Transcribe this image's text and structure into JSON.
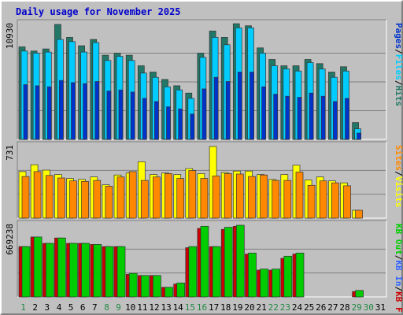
{
  "chart_data": {
    "type": "bar",
    "title": "Daily usage for November 2025",
    "colors": {
      "hits": "#227766",
      "files": "#00ccff",
      "pages": "#0033cc",
      "visits": "#ffff00",
      "sites": "#ff8800",
      "kb_in": "#cc0000",
      "kb_out": "#00cc00",
      "background": "#c0c0c0",
      "grid": "#808080",
      "weekend_label": "#228844",
      "title": "#0000cc"
    },
    "days": [
      "1",
      "2",
      "3",
      "4",
      "5",
      "6",
      "7",
      "8",
      "9",
      "10",
      "11",
      "12",
      "13",
      "14",
      "15",
      "16",
      "17",
      "18",
      "19",
      "20",
      "21",
      "22",
      "23",
      "24",
      "25",
      "26",
      "27",
      "28",
      "29",
      "30",
      "31"
    ],
    "weekend_days": [
      "1",
      "8",
      "9",
      "15",
      "16",
      "22",
      "23",
      "29",
      "30"
    ],
    "panels": [
      {
        "max_label": "10930",
        "ymax": 10930,
        "legend": [
          {
            "text": "Hits",
            "color": "#227766"
          },
          {
            "text": "/",
            "color": "#000000"
          },
          {
            "text": "Files",
            "color": "#00ccff"
          },
          {
            "text": "/",
            "color": "#000000"
          },
          {
            "text": "Pages",
            "color": "#0033cc"
          }
        ],
        "series": [
          {
            "name": "Hits",
            "color": "#227766",
            "values": [
              8800,
              8400,
              8600,
              10930,
              9700,
              8900,
              9500,
              8000,
              8200,
              8000,
              7000,
              6400,
              5700,
              5100,
              4400,
              8200,
              10300,
              9700,
              11000,
              10800,
              8700,
              7600,
              7000,
              7000,
              7600,
              7200,
              6400,
              6900,
              1600,
              null,
              null
            ]
          },
          {
            "name": "Files",
            "color": "#00ccff",
            "values": [
              8400,
              8200,
              8300,
              9500,
              9300,
              8300,
              9200,
              7500,
              7900,
              7500,
              6300,
              5900,
              5000,
              4700,
              3900,
              7800,
              9700,
              9000,
              10600,
              10600,
              8200,
              7000,
              6700,
              6500,
              7300,
              6700,
              5900,
              6500,
              1000,
              null,
              null
            ]
          },
          {
            "name": "Pages",
            "color": "#0033cc",
            "values": [
              5200,
              5100,
              5000,
              5600,
              5400,
              5300,
              5500,
              4600,
              4700,
              4500,
              3900,
              3600,
              3100,
              2900,
              2400,
              4800,
              5900,
              5500,
              6400,
              6400,
              5000,
              4300,
              4100,
              4000,
              4400,
              4100,
              3600,
              3900,
              600,
              null,
              null
            ]
          }
        ]
      },
      {
        "max_label": "731",
        "ymax": 731,
        "legend": [
          {
            "text": "Visits",
            "color": "#ffff00"
          },
          {
            "text": "/",
            "color": "#000000"
          },
          {
            "text": "Sites",
            "color": "#ff8800"
          }
        ],
        "series": [
          {
            "name": "Visits",
            "color": "#ffff00",
            "values": [
              475,
              545,
              490,
              445,
              405,
              395,
              420,
              340,
              440,
              460,
              575,
              445,
              460,
              445,
              505,
              455,
              731,
              465,
              480,
              480,
              445,
              395,
              445,
              540,
              390,
              420,
              380,
              360,
              80,
              null,
              null
            ]
          },
          {
            "name": "Sites",
            "color": "#ff8800",
            "values": [
              425,
              475,
              435,
              410,
              380,
              375,
              385,
              325,
              420,
              475,
              385,
              420,
              455,
              405,
              485,
              405,
              430,
              455,
              450,
              425,
              440,
              385,
              385,
              470,
              335,
              380,
              360,
              330,
              80,
              null,
              null
            ]
          }
        ]
      },
      {
        "max_label": "669238",
        "ymax": 669238,
        "legend": [
          {
            "text": "KB F",
            "color": "#cc0000"
          },
          {
            "text": "/",
            "color": "#000000"
          },
          {
            "text": "KB In",
            "color": "#3366ff"
          },
          {
            "text": "/",
            "color": "#000000"
          },
          {
            "text": "KB Out",
            "color": "#00cc00"
          }
        ],
        "series": [
          {
            "name": "KB F",
            "color": "#cc0000",
            "values": [
              470000,
              560000,
              500000,
              550000,
              500000,
              500000,
              490000,
              470000,
              470000,
              210000,
              200000,
              200000,
              90000,
              120000,
              460000,
              640000,
              470000,
              630000,
              660000,
              400000,
              250000,
              250000,
              360000,
              400000,
              null,
              null,
              null,
              null,
              50000,
              null,
              null
            ]
          },
          {
            "name": "KB Out",
            "color": "#00cc00",
            "values": [
              470000,
              560000,
              500000,
              550000,
              500000,
              500000,
              490000,
              470000,
              470000,
              220000,
              200000,
              200000,
              90000,
              130000,
              470000,
              660000,
              470000,
              650000,
              669238,
              410000,
              260000,
              260000,
              380000,
              410000,
              null,
              null,
              null,
              null,
              60000,
              null,
              null
            ]
          }
        ]
      }
    ]
  }
}
